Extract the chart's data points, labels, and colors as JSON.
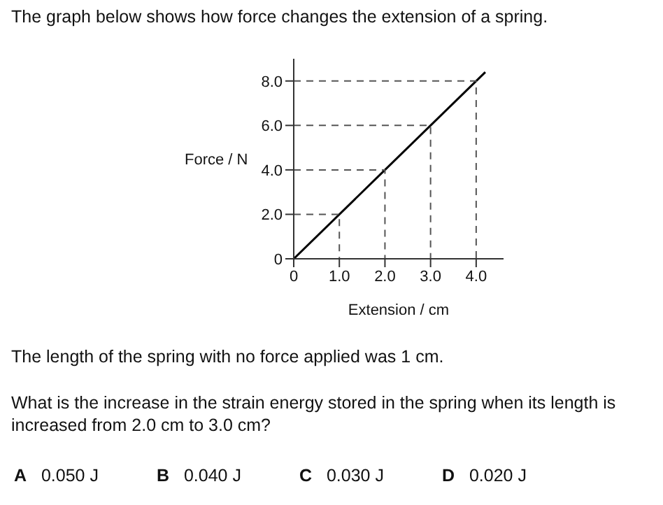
{
  "chart_data": {
    "type": "line",
    "title": "The graph below shows how force changes the extension of a spring.",
    "xlabel": "Extension / cm",
    "ylabel": "Force / N",
    "xlim": [
      0,
      4.6
    ],
    "ylim": [
      0,
      9
    ],
    "xticks": [
      0,
      {
        "value": 1,
        "label": "1.0"
      },
      {
        "value": 2,
        "label": "2.0"
      },
      {
        "value": 3,
        "label": "3.0"
      },
      {
        "value": 4,
        "label": "4.0"
      }
    ],
    "yticks": [
      0,
      {
        "value": 2,
        "label": "2.0"
      },
      {
        "value": 4,
        "label": "4.0"
      },
      {
        "value": 6,
        "label": "6.0"
      },
      {
        "value": 8,
        "label": "8.0"
      }
    ],
    "grid": false,
    "marker": "none",
    "series": [
      {
        "color": "#000000",
        "x": [
          0,
          4.2
        ],
        "values": [
          0,
          8.4
        ],
        "line_style": "solid"
      },
      {
        "color": "#555555",
        "x": [
          0,
          1,
          1
        ],
        "values": [
          2,
          2,
          0
        ],
        "line_style": "dashed"
      },
      {
        "color": "#555555",
        "x": [
          0,
          2,
          2
        ],
        "values": [
          4,
          4,
          0
        ],
        "line_style": "dashed"
      },
      {
        "color": "#555555",
        "x": [
          0,
          3,
          3
        ],
        "values": [
          6,
          6,
          0
        ],
        "line_style": "dashed"
      },
      {
        "color": "#555555",
        "x": [
          0,
          4,
          4
        ],
        "values": [
          8,
          8,
          0
        ],
        "line_style": "dashed"
      }
    ],
    "annotations": [
      "The length of the spring with no force applied was 1 cm.",
      "What is the increase in the strain energy stored in the spring when its length is increased from 2.0 cm to 3.0 cm?",
      "A",
      "0.050 J",
      "B",
      "0.040 J",
      "C",
      "0.030 J",
      "D",
      "0.020 J"
    ]
  }
}
